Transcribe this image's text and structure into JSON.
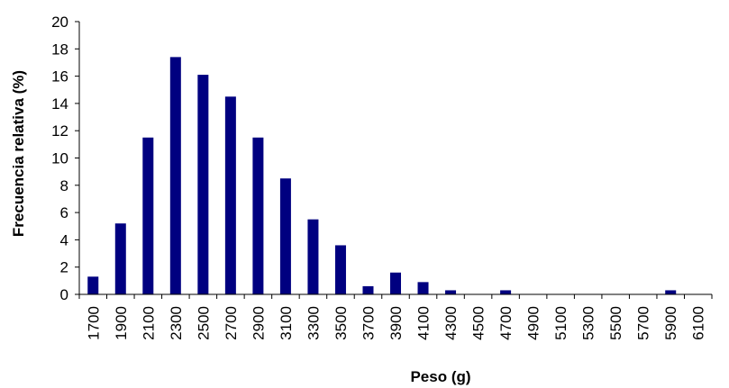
{
  "chart_data": {
    "type": "bar",
    "title": "",
    "xlabel": "Peso (g)",
    "ylabel": "Frecuencia relativa (%)",
    "ylim": [
      0,
      20
    ],
    "yticks": [
      "0",
      "2",
      "4",
      "6",
      "8",
      "10",
      "12",
      "14",
      "16",
      "18",
      "20"
    ],
    "grid": false,
    "legend": "none",
    "bar_color": "#000080",
    "categories": [
      "1700",
      "1900",
      "2100",
      "2300",
      "2500",
      "2700",
      "2900",
      "3100",
      "3300",
      "3500",
      "3700",
      "3900",
      "4100",
      "4300",
      "4500",
      "4700",
      "4900",
      "5100",
      "5300",
      "5500",
      "5700",
      "5900",
      "6100"
    ],
    "values": [
      1.3,
      5.2,
      11.5,
      17.4,
      16.1,
      14.5,
      11.5,
      8.5,
      5.5,
      3.6,
      0.6,
      1.6,
      0.9,
      0.3,
      0,
      0.3,
      0,
      0,
      0,
      0,
      0,
      0.3,
      0
    ]
  }
}
